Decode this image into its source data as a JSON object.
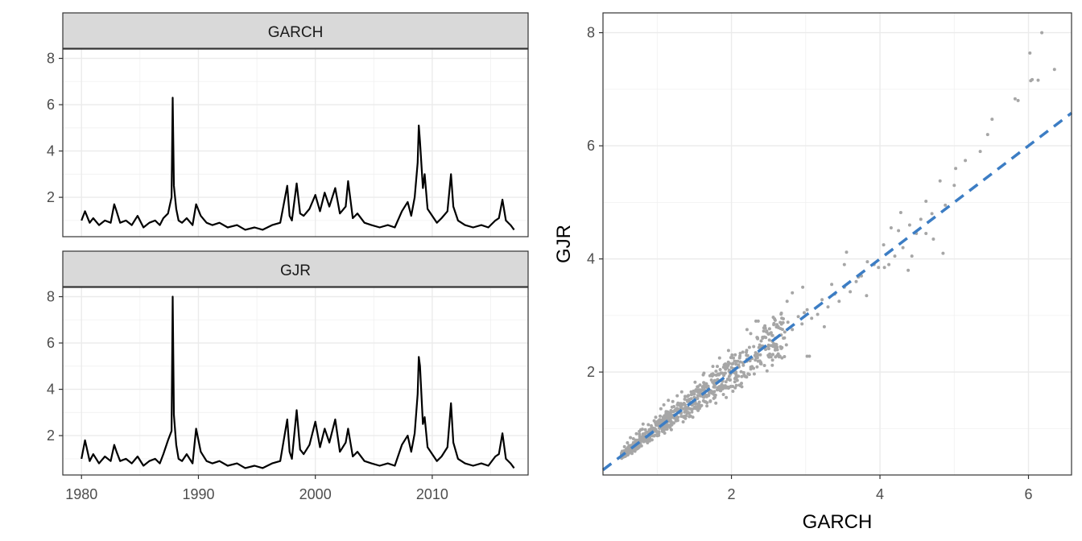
{
  "chart_data": [
    {
      "type": "line",
      "facets": [
        "GARCH",
        "GJR"
      ],
      "xticks": [
        "1980",
        "1990",
        "2000",
        "2010"
      ],
      "xtick_values": [
        1980,
        1990,
        2000,
        2010
      ],
      "yticks": [
        "2",
        "4",
        "6",
        "8"
      ],
      "ytick_values": [
        2,
        4,
        6,
        8
      ],
      "xlim": [
        1978.4,
        2018.2
      ],
      "ylim": [
        0.3,
        8.4
      ],
      "grid": true,
      "series": [
        {
          "name": "GARCH",
          "x": [
            1980.0,
            1980.3,
            1980.7,
            1981.0,
            1981.5,
            1982.0,
            1982.5,
            1982.8,
            1983.0,
            1983.3,
            1983.8,
            1984.3,
            1984.8,
            1985.3,
            1985.8,
            1986.3,
            1986.7,
            1987.0,
            1987.4,
            1987.7,
            1987.8,
            1987.9,
            1988.1,
            1988.3,
            1988.6,
            1989.0,
            1989.5,
            1989.8,
            1990.2,
            1990.7,
            1991.2,
            1991.8,
            1992.5,
            1993.3,
            1994.0,
            1994.8,
            1995.5,
            1996.3,
            1997.0,
            1997.6,
            1997.8,
            1998.0,
            1998.4,
            1998.7,
            1999.0,
            1999.5,
            2000.0,
            2000.4,
            2000.8,
            2001.2,
            2001.7,
            2002.1,
            2002.6,
            2002.8,
            2003.2,
            2003.6,
            2004.2,
            2004.8,
            2005.5,
            2006.2,
            2006.8,
            2007.4,
            2007.9,
            2008.2,
            2008.5,
            2008.75,
            2008.85,
            2008.95,
            2009.2,
            2009.35,
            2009.6,
            2010.0,
            2010.4,
            2010.8,
            2011.3,
            2011.6,
            2011.8,
            2012.2,
            2012.8,
            2013.5,
            2014.2,
            2014.8,
            2015.4,
            2015.7,
            2016.0,
            2016.3,
            2016.7,
            2017.0
          ],
          "y": [
            1.0,
            1.4,
            0.9,
            1.1,
            0.8,
            1.0,
            0.9,
            1.7,
            1.4,
            0.9,
            1.0,
            0.8,
            1.2,
            0.7,
            0.9,
            1.0,
            0.8,
            1.1,
            1.3,
            2.0,
            6.3,
            2.5,
            1.5,
            1.0,
            0.9,
            1.1,
            0.8,
            1.7,
            1.2,
            0.9,
            0.8,
            0.9,
            0.7,
            0.8,
            0.6,
            0.7,
            0.6,
            0.8,
            0.9,
            2.5,
            1.2,
            1.0,
            2.6,
            1.3,
            1.2,
            1.5,
            2.1,
            1.4,
            2.2,
            1.6,
            2.4,
            1.3,
            1.6,
            2.7,
            1.1,
            1.3,
            0.9,
            0.8,
            0.7,
            0.8,
            0.7,
            1.4,
            1.8,
            1.2,
            2.0,
            3.5,
            5.1,
            4.4,
            2.4,
            3.0,
            1.5,
            1.2,
            0.9,
            1.1,
            1.4,
            3.0,
            1.6,
            1.0,
            0.8,
            0.7,
            0.8,
            0.7,
            1.0,
            1.1,
            1.9,
            1.0,
            0.8,
            0.6
          ]
        },
        {
          "name": "GJR",
          "x": [
            1980.0,
            1980.3,
            1980.7,
            1981.0,
            1981.5,
            1982.0,
            1982.5,
            1982.8,
            1983.0,
            1983.3,
            1983.8,
            1984.3,
            1984.8,
            1985.3,
            1985.8,
            1986.3,
            1986.7,
            1987.0,
            1987.4,
            1987.7,
            1987.8,
            1987.9,
            1988.1,
            1988.3,
            1988.6,
            1989.0,
            1989.5,
            1989.8,
            1990.2,
            1990.7,
            1991.2,
            1991.8,
            1992.5,
            1993.3,
            1994.0,
            1994.8,
            1995.5,
            1996.3,
            1997.0,
            1997.6,
            1997.8,
            1998.0,
            1998.4,
            1998.7,
            1999.0,
            1999.5,
            2000.0,
            2000.4,
            2000.8,
            2001.2,
            2001.7,
            2002.1,
            2002.6,
            2002.8,
            2003.2,
            2003.6,
            2004.2,
            2004.8,
            2005.5,
            2006.2,
            2006.8,
            2007.4,
            2007.9,
            2008.2,
            2008.5,
            2008.75,
            2008.85,
            2008.95,
            2009.2,
            2009.35,
            2009.6,
            2010.0,
            2010.4,
            2010.8,
            2011.3,
            2011.6,
            2011.8,
            2012.2,
            2012.8,
            2013.5,
            2014.2,
            2014.8,
            2015.4,
            2015.7,
            2016.0,
            2016.3,
            2016.7,
            2017.0
          ],
          "y": [
            1.0,
            1.8,
            0.9,
            1.2,
            0.8,
            1.1,
            0.9,
            1.6,
            1.3,
            0.9,
            1.0,
            0.8,
            1.1,
            0.7,
            0.9,
            1.0,
            0.8,
            1.2,
            1.8,
            2.2,
            8.0,
            2.9,
            1.6,
            1.0,
            0.9,
            1.2,
            0.8,
            2.3,
            1.3,
            0.9,
            0.8,
            0.9,
            0.7,
            0.8,
            0.6,
            0.7,
            0.6,
            0.8,
            0.9,
            2.7,
            1.3,
            1.0,
            3.1,
            1.4,
            1.2,
            1.6,
            2.6,
            1.5,
            2.3,
            1.7,
            2.7,
            1.3,
            1.7,
            2.3,
            1.1,
            1.3,
            0.9,
            0.8,
            0.7,
            0.8,
            0.7,
            1.6,
            2.0,
            1.3,
            2.1,
            3.8,
            5.4,
            5.0,
            2.5,
            2.8,
            1.5,
            1.2,
            0.9,
            1.1,
            1.5,
            3.4,
            1.7,
            1.0,
            0.8,
            0.7,
            0.8,
            0.7,
            1.1,
            1.2,
            2.1,
            1.0,
            0.8,
            0.6
          ]
        }
      ]
    },
    {
      "type": "scatter",
      "xlabel": "GARCH",
      "ylabel": "GJR",
      "xticks": [
        "2",
        "4",
        "6"
      ],
      "xtick_values": [
        2,
        4,
        6
      ],
      "yticks": [
        "2",
        "4",
        "6",
        "8"
      ],
      "ytick_values": [
        2,
        4,
        6,
        8
      ],
      "xlim": [
        0.27,
        6.58
      ],
      "ylim": [
        0.18,
        8.35
      ],
      "grid": true,
      "reference_line": {
        "slope": 1,
        "intercept": 0,
        "style": "dashed",
        "color": "#3c7dc4"
      },
      "point_color": "#a6a6a6",
      "points_x": [
        6.18,
        6.02,
        6.05,
        6.35,
        6.03,
        6.13,
        5.82,
        5.86,
        5.51,
        5.45,
        5.35,
        5.15,
        5.02,
        5.0,
        4.81,
        4.88,
        4.7,
        4.62,
        4.55,
        4.49,
        4.4,
        4.31,
        4.25,
        4.2,
        4.12,
        4.05,
        3.98,
        3.92,
        3.83,
        3.75,
        3.68,
        3.6,
        3.52,
        3.45,
        3.39,
        3.3,
        3.22,
        3.16,
        3.08,
        3.02,
        2.95,
        2.9,
        2.82,
        2.76,
        2.7,
        2.63,
        2.57,
        2.51,
        2.46,
        2.4,
        2.35,
        2.3,
        2.25,
        2.2,
        2.16,
        2.11,
        2.06,
        2.02,
        1.97,
        1.92,
        1.88,
        1.83,
        1.78,
        1.73,
        1.69,
        1.64,
        1.6,
        1.55,
        1.5,
        1.46,
        1.41,
        1.37,
        1.32,
        1.28,
        1.24,
        1.2,
        1.16,
        1.12,
        1.08,
        1.04,
        1.0,
        0.96,
        0.92,
        0.88,
        0.84,
        0.8,
        0.76,
        0.72,
        0.68,
        0.64,
        0.6,
        0.56,
        0.53,
        4.43,
        4.28,
        3.71,
        3.35,
        2.98,
        2.63,
        2.21,
        1.93,
        1.62,
        1.38,
        1.09,
        0.85,
        4.72,
        4.06,
        3.52,
        3.05,
        2.74,
        2.42,
        2.12,
        1.81,
        1.55,
        1.27,
        1.02,
        0.78,
        2.82,
        2.55,
        2.33,
        2.14,
        1.96,
        1.79,
        1.63,
        1.48,
        1.33,
        1.19,
        1.05,
        0.93,
        0.81,
        0.7,
        0.62,
        3.02,
        2.75,
        2.48,
        2.26,
        2.02,
        1.84,
        1.67,
        1.51,
        1.35,
        1.21,
        1.1,
        0.98,
        0.87,
        0.76,
        0.66,
        4.85,
        4.62,
        4.38,
        4.15,
        3.82,
        3.55,
        3.25,
        2.96,
        2.68,
        2.36,
        2.05,
        1.75,
        1.45,
        1.15,
        0.9,
        0.58
      ],
      "points_y": [
        8.0,
        7.64,
        7.17,
        7.35,
        7.15,
        7.16,
        6.83,
        6.8,
        6.47,
        6.2,
        5.9,
        5.74,
        5.6,
        5.3,
        5.38,
        4.95,
        4.8,
        4.45,
        4.7,
        4.45,
        4.6,
        4.2,
        4.5,
        4.05,
        3.9,
        4.25,
        3.85,
        3.9,
        3.95,
        3.7,
        3.6,
        3.42,
        3.5,
        3.25,
        3.38,
        3.15,
        3.28,
        3.02,
        2.95,
        3.1,
        2.85,
        2.98,
        2.75,
        2.88,
        2.6,
        2.8,
        2.5,
        2.68,
        2.4,
        2.55,
        2.32,
        2.45,
        2.2,
        2.35,
        2.12,
        2.25,
        2.0,
        2.15,
        1.92,
        2.05,
        1.85,
        1.95,
        1.78,
        1.86,
        1.7,
        1.78,
        1.62,
        1.68,
        1.55,
        1.6,
        1.48,
        1.52,
        1.4,
        1.45,
        1.33,
        1.38,
        1.26,
        1.3,
        1.2,
        1.22,
        1.12,
        1.14,
        1.05,
        1.07,
        0.98,
        0.99,
        0.9,
        0.91,
        0.82,
        0.84,
        0.75,
        0.68,
        0.6,
        4.05,
        4.82,
        3.68,
        3.55,
        3.05,
        2.32,
        2.75,
        1.55,
        1.95,
        1.18,
        1.42,
        0.78,
        4.35,
        3.85,
        3.9,
        2.28,
        2.48,
        2.6,
        1.76,
        2.1,
        1.32,
        1.58,
        0.88,
        0.98,
        3.4,
        2.12,
        2.9,
        1.74,
        2.38,
        1.45,
        1.98,
        1.2,
        1.65,
        0.98,
        1.35,
        0.8,
        1.08,
        0.6,
        0.7,
        2.28,
        3.25,
        2.02,
        2.68,
        1.66,
        2.25,
        1.4,
        1.82,
        1.12,
        1.48,
        0.92,
        1.2,
        0.75,
        0.95,
        0.56,
        4.1,
        5.02,
        3.8,
        4.55,
        3.35,
        4.12,
        2.8,
        3.5,
        2.25,
        2.9,
        1.72,
        2.1,
        1.22,
        1.5,
        0.84,
        0.55
      ]
    }
  ]
}
